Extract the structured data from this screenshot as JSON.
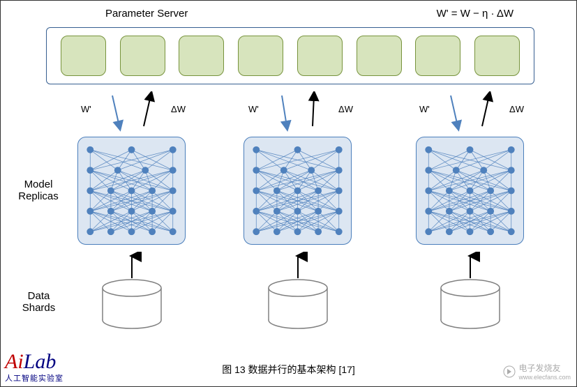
{
  "header": {
    "title": "Parameter Server",
    "formula": "W' = W − η · ΔW"
  },
  "paramServer": {
    "cells": 8,
    "cell_color": "#d7e4bd",
    "cell_border": "#77933c",
    "box_border": "#365f91"
  },
  "arrows": {
    "down_label": "W'",
    "up_label": "ΔW",
    "down_color": "#4f81bd",
    "up_color": "#000000",
    "positions_x": [
      140,
      380,
      630
    ]
  },
  "replicas": {
    "count": 3,
    "bg": "#dce6f2",
    "border": "#4a7ebb",
    "node_color": "#4f81bd",
    "edge_color": "#4f81bd",
    "positions_x": [
      110,
      348,
      595
    ],
    "layers": [
      5,
      5,
      5,
      4,
      3
    ]
  },
  "labels": {
    "model_replicas": "Model\nReplicas",
    "data_shards": "Data\nShards"
  },
  "dataShards": {
    "count": 3,
    "positions_x": [
      143,
      381,
      628
    ],
    "fill": "#ffffff",
    "stroke": "#808080"
  },
  "caption": "图 13  数据并行的基本架构  [17]",
  "watermarks": {
    "left_logo": "AiLab",
    "left_sub": "人工智能实验室",
    "right_text": "电子发烧友",
    "right_url": "www.elecfans.com"
  },
  "colors": {
    "text": "#000000",
    "bg": "#ffffff"
  }
}
